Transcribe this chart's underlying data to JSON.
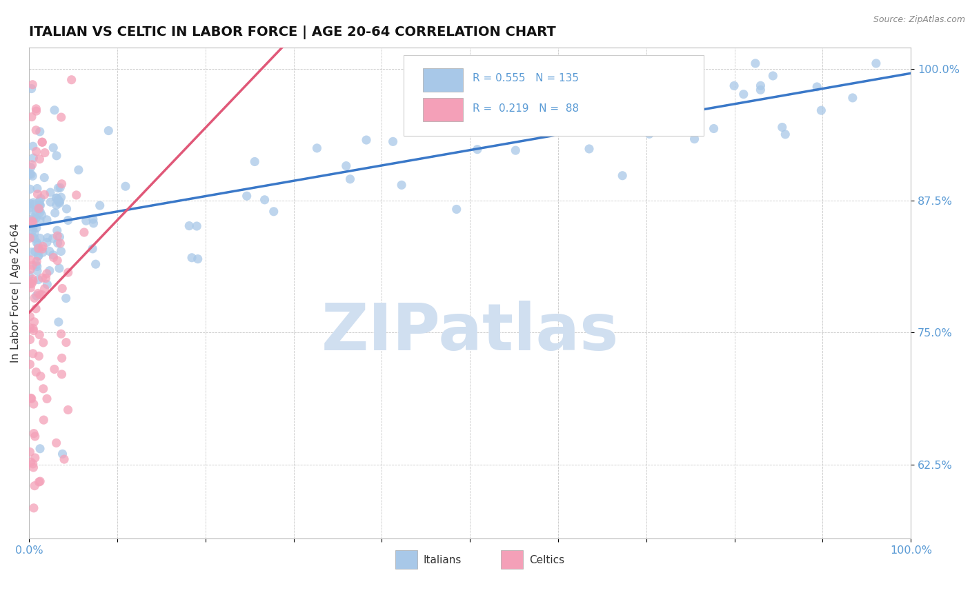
{
  "title": "ITALIAN VS CELTIC IN LABOR FORCE | AGE 20-64 CORRELATION CHART",
  "source_text": "Source: ZipAtlas.com",
  "ylabel": "In Labor Force | Age 20-64",
  "xlim": [
    0.0,
    1.0
  ],
  "ylim": [
    0.555,
    1.02
  ],
  "ytick_vals": [
    0.625,
    0.75,
    0.875,
    1.0
  ],
  "ytick_labels": [
    "62.5%",
    "75.0%",
    "87.5%",
    "100.0%"
  ],
  "xtick_vals": [
    0.0,
    0.1,
    0.2,
    0.3,
    0.4,
    0.5,
    0.6,
    0.7,
    0.8,
    0.9,
    1.0
  ],
  "xtick_labels": [
    "0.0%",
    "",
    "",
    "",
    "",
    "",
    "",
    "",
    "",
    "",
    "100.0%"
  ],
  "legend_R_italian": "0.555",
  "legend_N_italian": "135",
  "legend_R_celtic": "0.219",
  "legend_N_celtic": "88",
  "italian_color": "#a8c8e8",
  "celtic_color": "#f4a0b8",
  "italian_line_color": "#3a78c8",
  "celtic_line_color": "#e05878",
  "watermark": "ZIPatlas",
  "watermark_color": "#d0dff0",
  "background_color": "#ffffff",
  "title_fontsize": 14,
  "tick_label_color": "#5b9bd5",
  "ylabel_color": "#333333"
}
